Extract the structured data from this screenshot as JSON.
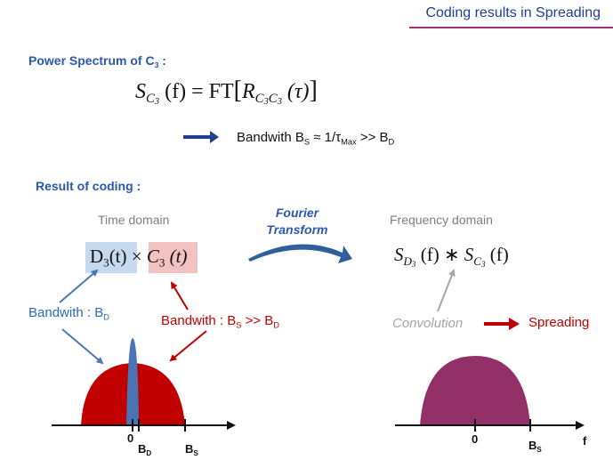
{
  "header": {
    "title": "Coding results in Spreading"
  },
  "power_spectrum": {
    "heading": "Power Spectrum of C",
    "heading_sub": "3",
    "heading_colon": " :",
    "formula": {
      "s": "S",
      "s_sub": "C",
      "s_subsub": "3",
      "arg": " (f) = FT",
      "bracket_open": "[",
      "r": "R",
      "r_sub": "C",
      "r_subsub_a": "3",
      "r_sub_b": "C",
      "r_subsub_b": "3",
      "tau": " (τ)",
      "bracket_close": "]"
    },
    "bandwidth_line": {
      "prefix": "Bandwith  B",
      "prefix_sub": "S",
      "approx": " ≈  1/τ",
      "tau_sub": "Max",
      "suffix": "  >> B",
      "suffix_sub": "D"
    }
  },
  "result": {
    "heading": "Result of coding :",
    "time_domain_label": "Time domain",
    "frequency_domain_label": "Frequency domain",
    "fourier_label_1": "Fourier",
    "fourier_label_2": "Transform",
    "time_product": {
      "d": "D",
      "d_sub": "3",
      "d_arg": "(t)",
      "times": " × ",
      "c": "C",
      "c_sub": "3",
      "c_arg": " (t)"
    },
    "freq_product": {
      "s1": "S",
      "s1_sub": "D",
      "s1_subsub": "3",
      "s1_arg": " (f) ∗ ",
      "s2": "S",
      "s2_sub": "C",
      "s2_subsub": "3",
      "s2_arg": " (f)"
    },
    "bandwidth_d": {
      "prefix": "Bandwith : B",
      "sub": "D"
    },
    "bandwidth_s": {
      "prefix": "Bandwith : B",
      "sub": "S",
      "mid": " >> B",
      "sub2": "D"
    },
    "convolution_label": "Convolution",
    "spreading_label": "Spreading"
  },
  "axes": {
    "left_zero": "0",
    "left_bd": "B",
    "left_bd_sub": "D",
    "left_bs": "B",
    "left_bs_sub": "S",
    "right_zero": "0",
    "right_bs": "B",
    "right_bs_sub": "S",
    "right_axis_name": "f"
  },
  "colors": {
    "title_blue": "#1f3f8f",
    "title_rule": "#a3307a",
    "heading_blue": "#2a59b0",
    "dark_red": "#c00000",
    "purple": "#933067",
    "narrow_blue": "#4a75b5",
    "grey": "#a6a6a6"
  }
}
